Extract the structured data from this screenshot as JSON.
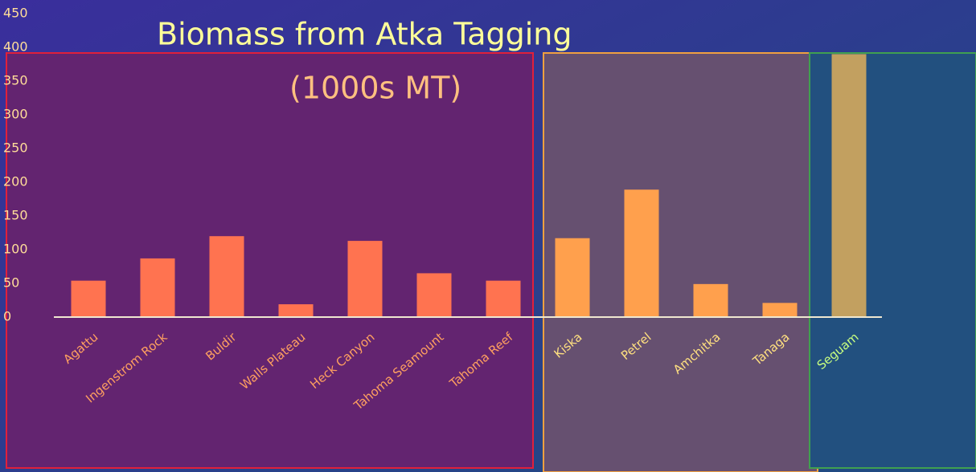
{
  "chart_data": {
    "type": "bar",
    "title": "Biomass from Atka Tagging",
    "subtitle": "(1000s MT)",
    "categories": [
      "Agattu",
      "Ingenstrom Rock",
      "Buldir",
      "Walls Plateau",
      "Heck Canyon",
      "Tahoma Seamount",
      "Tahoma Reef",
      "Kiska",
      "Petrel",
      "Amchitka",
      "Tanaga",
      "Seguam"
    ],
    "values": [
      54,
      87,
      120,
      19,
      113,
      65,
      54,
      117,
      189,
      49,
      21,
      390
    ],
    "colors": [
      "#ff7350",
      "#ff7350",
      "#ff7350",
      "#ff7350",
      "#ff7350",
      "#ff7350",
      "#ff7350",
      "#ffa04d",
      "#ffa04d",
      "#ffa04d",
      "#ffa04d",
      "#c2a060"
    ],
    "label_colors": [
      "#ffa060",
      "#ffa060",
      "#ffa060",
      "#ffa060",
      "#ffa060",
      "#ffa060",
      "#ffa060",
      "#ffe080",
      "#ffe080",
      "#ffe080",
      "#ffe080",
      "#c8ff80"
    ],
    "ylim": [
      0,
      450
    ],
    "yticks": [
      0,
      50,
      100,
      150,
      200,
      250,
      300,
      350,
      400,
      450
    ]
  }
}
